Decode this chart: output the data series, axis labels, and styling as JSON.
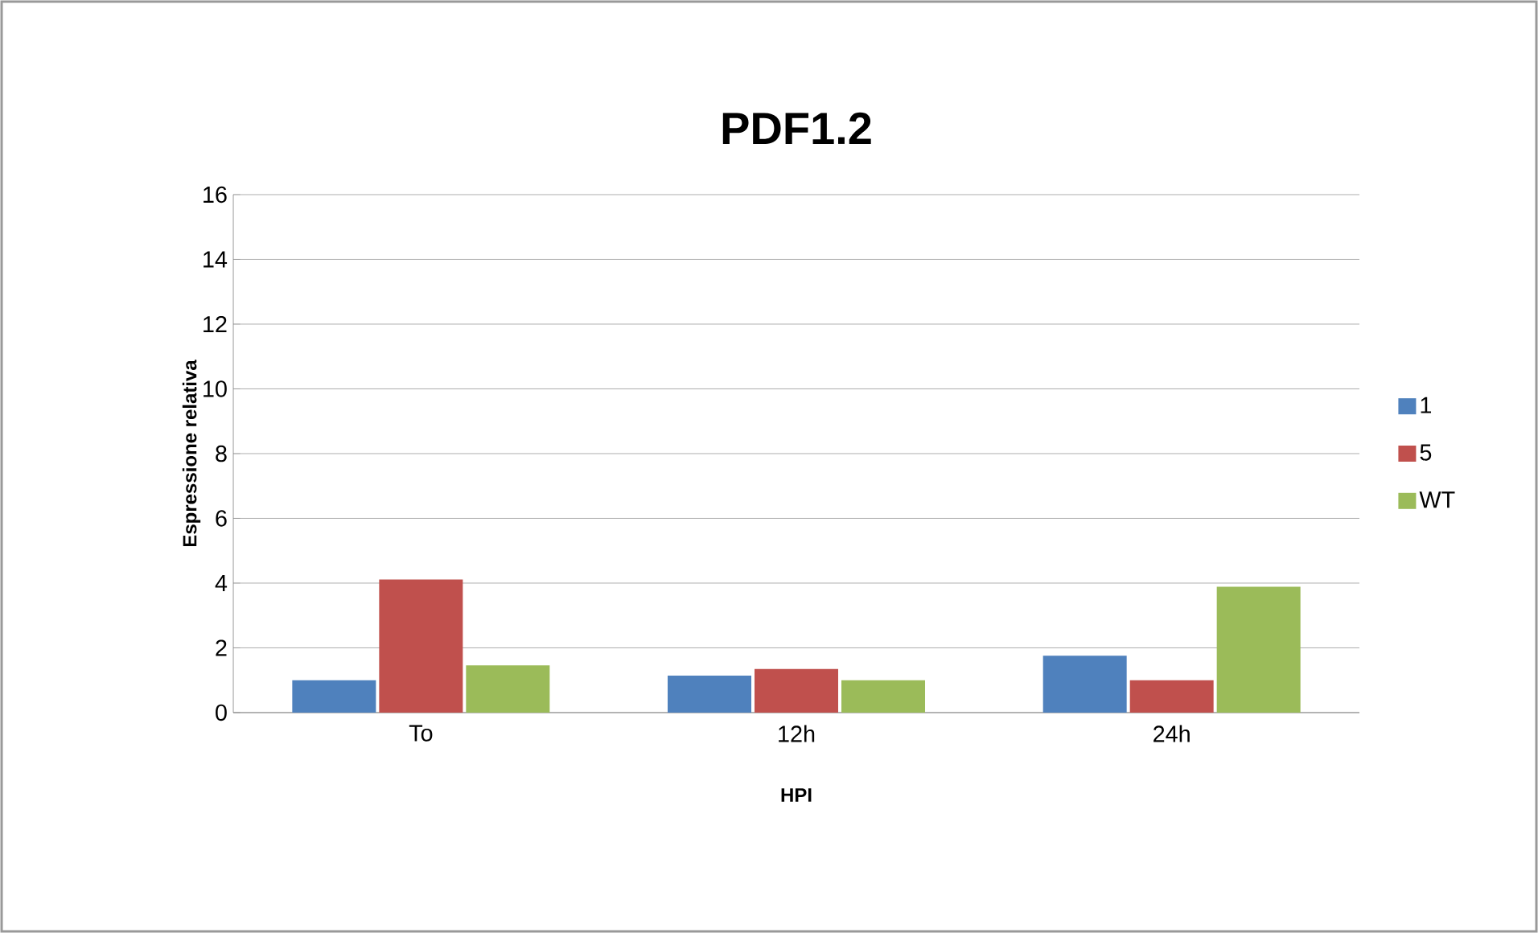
{
  "chart_data": {
    "type": "bar",
    "title": "PDF1.2",
    "xlabel": "HPI",
    "ylabel": "Espressione relativa",
    "categories": [
      "To",
      "12h",
      "24h"
    ],
    "series": [
      {
        "name": "1",
        "color": "#4f81bd",
        "values": [
          1.0,
          1.14,
          1.76
        ]
      },
      {
        "name": "5",
        "color": "#c0504d",
        "values": [
          4.11,
          1.35,
          1.0
        ]
      },
      {
        "name": "WT",
        "color": "#9bbb59",
        "values": [
          1.46,
          1.0,
          3.89
        ]
      }
    ],
    "ylim": [
      0,
      16
    ],
    "yticks": [
      0,
      2,
      4,
      6,
      8,
      10,
      12,
      14,
      16
    ],
    "grid": "y",
    "legend": "right"
  }
}
